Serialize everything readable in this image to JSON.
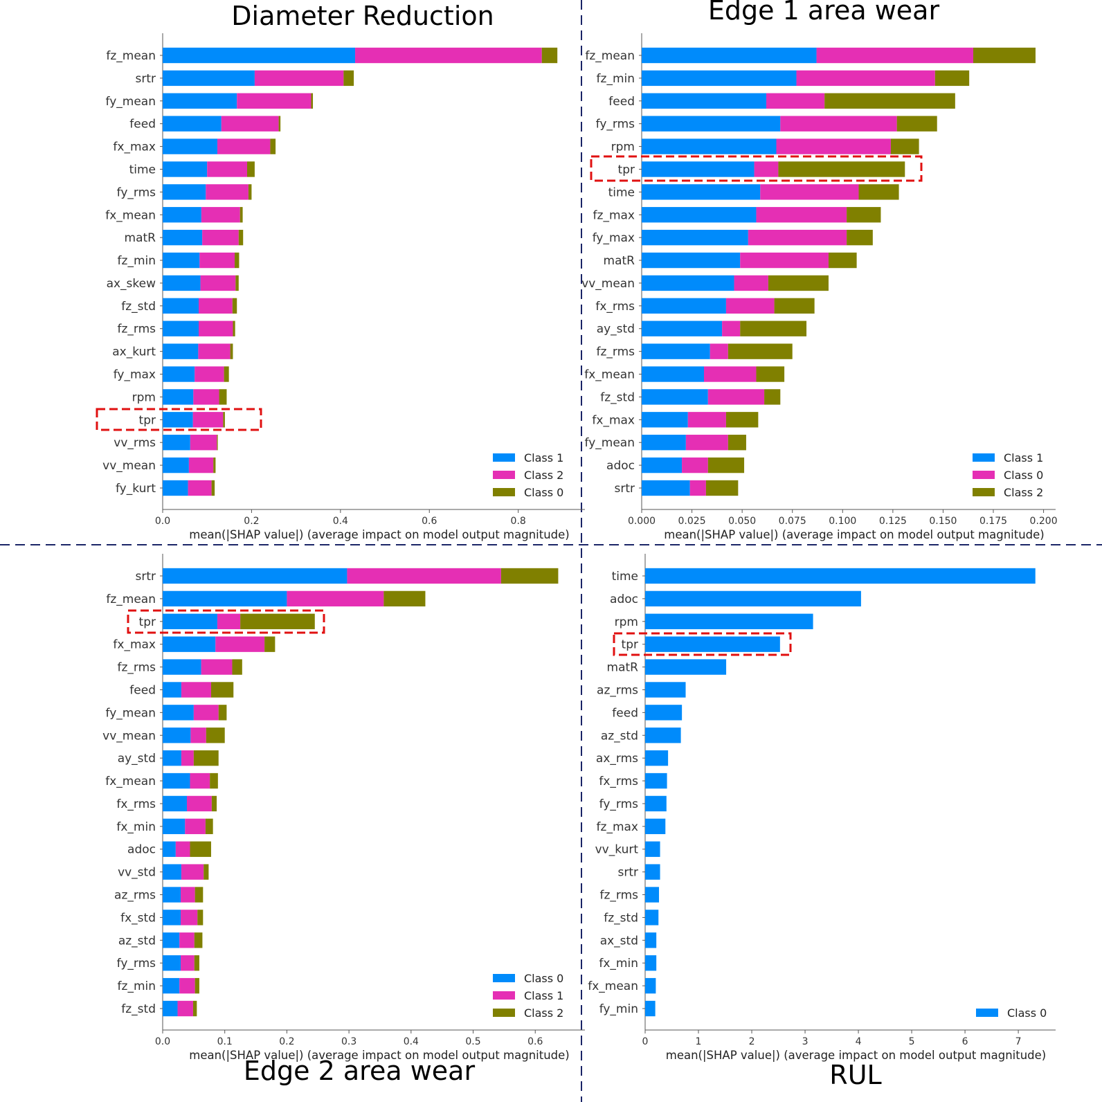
{
  "chart_data": [
    {
      "type": "bar",
      "stacked": true,
      "orientation": "horizontal",
      "title": "Diameter Reduction",
      "xlabel": "mean(|SHAP value|) (average impact on model output magnitude)",
      "xlim": [
        0,
        0.95
      ],
      "xticks": [
        "0.0",
        "0.2",
        "0.4",
        "0.6",
        "0.8"
      ],
      "xtick_values": [
        0,
        0.2,
        0.4,
        0.6,
        0.8
      ],
      "categories": [
        "fz_mean",
        "srtr",
        "fy_mean",
        "feed",
        "fx_max",
        "time",
        "fy_rms",
        "fx_mean",
        "matR",
        "fz_min",
        "ax_skew",
        "fz_std",
        "fz_rms",
        "ax_kurt",
        "fy_max",
        "rpm",
        "tpr",
        "vv_rms",
        "vv_mean",
        "fy_kurt"
      ],
      "series": [
        {
          "name": "Class 1",
          "color": "#008bfb",
          "values": [
            0.433,
            0.207,
            0.167,
            0.132,
            0.123,
            0.1,
            0.097,
            0.087,
            0.089,
            0.083,
            0.085,
            0.081,
            0.081,
            0.08,
            0.072,
            0.069,
            0.068,
            0.062,
            0.059,
            0.057
          ]
        },
        {
          "name": "Class 2",
          "color": "#e52fb4",
          "values": [
            0.42,
            0.2,
            0.167,
            0.129,
            0.119,
            0.09,
            0.096,
            0.087,
            0.082,
            0.079,
            0.079,
            0.076,
            0.077,
            0.072,
            0.066,
            0.058,
            0.068,
            0.06,
            0.055,
            0.053
          ]
        },
        {
          "name": "Class 0",
          "color": "#808000",
          "values": [
            0.035,
            0.023,
            0.004,
            0.004,
            0.012,
            0.017,
            0.007,
            0.006,
            0.01,
            0.01,
            0.007,
            0.01,
            0.005,
            0.006,
            0.011,
            0.017,
            0.004,
            0.002,
            0.005,
            0.007
          ]
        }
      ],
      "legend": [
        "Class 1",
        "Class 2",
        "Class 0"
      ],
      "legend_position": "bottom-right",
      "highlight": "tpr",
      "grid": false
    },
    {
      "type": "bar",
      "stacked": true,
      "orientation": "horizontal",
      "title": "Edge 1 area wear",
      "xlabel": "mean(|SHAP value|) (average impact on model output magnitude)",
      "xlim": [
        0,
        0.206
      ],
      "xticks": [
        "0.000",
        "0.025",
        "0.050",
        "0.075",
        "0.100",
        "0.125",
        "0.150",
        "0.175",
        "0.200"
      ],
      "xtick_values": [
        0,
        0.025,
        0.05,
        0.075,
        0.1,
        0.125,
        0.15,
        0.175,
        0.2
      ],
      "categories": [
        "fz_mean",
        "fz_min",
        "feed",
        "fy_rms",
        "rpm",
        "tpr",
        "time",
        "fz_max",
        "fy_max",
        "matR",
        "vv_mean",
        "fx_rms",
        "ay_std",
        "fz_rms",
        "fx_mean",
        "fz_std",
        "fx_max",
        "fy_mean",
        "adoc",
        "srtr"
      ],
      "series": [
        {
          "name": "Class 1",
          "color": "#008bfb",
          "values": [
            0.087,
            0.077,
            0.062,
            0.069,
            0.067,
            0.056,
            0.059,
            0.057,
            0.053,
            0.049,
            0.046,
            0.042,
            0.04,
            0.034,
            0.031,
            0.033,
            0.023,
            0.022,
            0.02,
            0.024
          ]
        },
        {
          "name": "Class 0",
          "color": "#e52fb4",
          "values": [
            0.078,
            0.069,
            0.029,
            0.058,
            0.057,
            0.012,
            0.049,
            0.045,
            0.049,
            0.044,
            0.017,
            0.024,
            0.009,
            0.009,
            0.026,
            0.028,
            0.019,
            0.021,
            0.013,
            0.008
          ]
        },
        {
          "name": "Class 2",
          "color": "#808000",
          "values": [
            0.031,
            0.017,
            0.065,
            0.02,
            0.014,
            0.063,
            0.02,
            0.017,
            0.013,
            0.014,
            0.03,
            0.02,
            0.033,
            0.032,
            0.014,
            0.008,
            0.016,
            0.009,
            0.018,
            0.016
          ]
        }
      ],
      "legend": [
        "Class 1",
        "Class 0",
        "Class 2"
      ],
      "legend_position": "bottom-right",
      "highlight": "tpr",
      "grid": false
    },
    {
      "type": "bar",
      "stacked": true,
      "orientation": "horizontal",
      "title": "Edge 2 area wear",
      "xlabel": "mean(|SHAP value|) (average impact on model output magnitude)",
      "xlim": [
        0,
        0.68
      ],
      "xticks": [
        "0.0",
        "0.1",
        "0.2",
        "0.3",
        "0.4",
        "0.5",
        "0.6"
      ],
      "xtick_values": [
        0,
        0.1,
        0.2,
        0.3,
        0.4,
        0.5,
        0.6
      ],
      "categories": [
        "srtr",
        "fz_mean",
        "tpr",
        "fx_max",
        "fz_rms",
        "feed",
        "fy_mean",
        "vv_mean",
        "ay_std",
        "fx_mean",
        "fx_rms",
        "fx_min",
        "adoc",
        "vv_std",
        "az_rms",
        "fx_std",
        "az_std",
        "fy_rms",
        "fz_min",
        "fz_std"
      ],
      "series": [
        {
          "name": "Class 0",
          "color": "#008bfb",
          "values": [
            0.297,
            0.2,
            0.088,
            0.085,
            0.062,
            0.03,
            0.05,
            0.045,
            0.03,
            0.044,
            0.039,
            0.036,
            0.021,
            0.03,
            0.029,
            0.029,
            0.027,
            0.029,
            0.027,
            0.024
          ]
        },
        {
          "name": "Class 1",
          "color": "#e52fb4",
          "values": [
            0.248,
            0.156,
            0.037,
            0.079,
            0.05,
            0.048,
            0.04,
            0.025,
            0.02,
            0.032,
            0.04,
            0.033,
            0.023,
            0.036,
            0.023,
            0.027,
            0.024,
            0.022,
            0.025,
            0.025
          ]
        },
        {
          "name": "Class 2",
          "color": "#808000",
          "values": [
            0.092,
            0.067,
            0.12,
            0.017,
            0.016,
            0.036,
            0.013,
            0.03,
            0.04,
            0.013,
            0.008,
            0.012,
            0.034,
            0.008,
            0.013,
            0.009,
            0.013,
            0.008,
            0.007,
            0.006
          ]
        }
      ],
      "legend": [
        "Class 0",
        "Class 1",
        "Class 2"
      ],
      "legend_position": "bottom-right",
      "highlight": "tpr",
      "grid": false
    },
    {
      "type": "bar",
      "orientation": "horizontal",
      "title": "RUL",
      "xlabel": "mean(|SHAP value|) (average impact on model output magnitude)",
      "xlim": [
        0,
        7.7
      ],
      "xticks": [
        "0",
        "1",
        "2",
        "3",
        "4",
        "5",
        "6",
        "7"
      ],
      "xtick_values": [
        0,
        1,
        2,
        3,
        4,
        5,
        6,
        7
      ],
      "categories": [
        "time",
        "adoc",
        "rpm",
        "tpr",
        "matR",
        "az_rms",
        "feed",
        "az_std",
        "ax_rms",
        "fx_rms",
        "fy_rms",
        "fz_max",
        "vv_kurt",
        "srtr",
        "fz_rms",
        "fz_std",
        "ax_std",
        "fx_min",
        "fx_mean",
        "fy_min"
      ],
      "series": [
        {
          "name": "Class 0",
          "color": "#008bfb",
          "values": [
            7.32,
            4.05,
            3.15,
            2.53,
            1.52,
            0.76,
            0.69,
            0.67,
            0.43,
            0.41,
            0.4,
            0.38,
            0.28,
            0.28,
            0.26,
            0.25,
            0.21,
            0.21,
            0.2,
            0.19
          ]
        }
      ],
      "legend": [
        "Class 0"
      ],
      "legend_position": "bottom-right",
      "highlight": "tpr",
      "grid": false
    }
  ]
}
